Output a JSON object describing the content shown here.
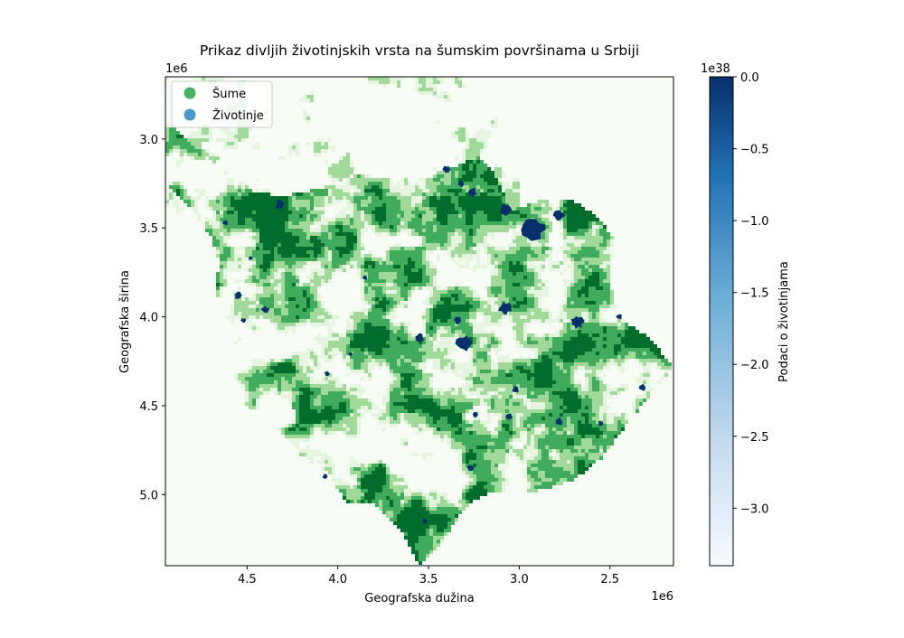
{
  "chart_data": {
    "type": "heatmap",
    "title": "Prikaz divljih životinjskih vrsta na šumskim površinama u Srbiji",
    "xlabel": "Geografska dužina",
    "ylabel": "Geografska širina",
    "x_multiplier": "1e6",
    "y_multiplier": "1e6",
    "xlim": [
      4.95,
      2.15
    ],
    "ylim": [
      5.4,
      2.65
    ],
    "x_inverted": true,
    "y_inverted": true,
    "xticks": [
      {
        "value": 4.5,
        "label": "4.5"
      },
      {
        "value": 4.0,
        "label": "4.0"
      },
      {
        "value": 3.5,
        "label": "3.5"
      },
      {
        "value": 3.0,
        "label": "3.0"
      },
      {
        "value": 2.5,
        "label": "2.5"
      }
    ],
    "yticks": [
      {
        "value": 3.0,
        "label": "3.0"
      },
      {
        "value": 3.5,
        "label": "3.5"
      },
      {
        "value": 4.0,
        "label": "4.0"
      },
      {
        "value": 4.5,
        "label": "4.5"
      },
      {
        "value": 5.0,
        "label": "5.0"
      }
    ],
    "legend": {
      "placement": "top-left",
      "entries": [
        {
          "label": "Šume",
          "color": "#4daf62"
        },
        {
          "label": "Životinje",
          "color": "#4a98c9"
        }
      ]
    },
    "layers": [
      {
        "name": "Šume",
        "colormap": "Greens"
      },
      {
        "name": "Životinje",
        "colormap": "Blues"
      }
    ],
    "colorbar": {
      "label": "Podaci o životinjama",
      "multiplier": "1e38",
      "range": [
        -3.4,
        0.0
      ],
      "ticks": [
        {
          "value": 0.0,
          "label": "0.0"
        },
        {
          "value": -0.5,
          "label": "−0.5"
        },
        {
          "value": -1.0,
          "label": "−1.0"
        },
        {
          "value": -1.5,
          "label": "−1.5"
        },
        {
          "value": -2.0,
          "label": "−2.0"
        },
        {
          "value": -2.5,
          "label": "−2.5"
        },
        {
          "value": -3.0,
          "label": "−3.0"
        }
      ],
      "colors": [
        "#f7fbff",
        "#c6dbef",
        "#6baed6",
        "#2171b5",
        "#08306b"
      ]
    },
    "background_color": "#f7fcf5",
    "forest_colors": [
      "#e5f5e0",
      "#a1d99b",
      "#41ab5d",
      "#006d2c"
    ],
    "animal_color": "#08306b",
    "animal_patches": [
      {
        "x": 2.92,
        "y": 3.51,
        "r": 0.06
      },
      {
        "x": 3.08,
        "y": 3.4,
        "r": 0.035
      },
      {
        "x": 2.78,
        "y": 3.43,
        "r": 0.03
      },
      {
        "x": 3.26,
        "y": 3.3,
        "r": 0.025
      },
      {
        "x": 3.4,
        "y": 3.17,
        "r": 0.02
      },
      {
        "x": 3.32,
        "y": 3.25,
        "r": 0.018
      },
      {
        "x": 3.08,
        "y": 3.95,
        "r": 0.035
      },
      {
        "x": 3.3,
        "y": 4.15,
        "r": 0.045
      },
      {
        "x": 3.55,
        "y": 4.12,
        "r": 0.025
      },
      {
        "x": 3.34,
        "y": 4.02,
        "r": 0.02
      },
      {
        "x": 2.68,
        "y": 4.03,
        "r": 0.035
      },
      {
        "x": 4.55,
        "y": 3.88,
        "r": 0.02
      },
      {
        "x": 4.52,
        "y": 4.02,
        "r": 0.015
      },
      {
        "x": 4.4,
        "y": 3.96,
        "r": 0.02
      },
      {
        "x": 4.32,
        "y": 3.37,
        "r": 0.025
      },
      {
        "x": 4.62,
        "y": 3.47,
        "r": 0.015
      },
      {
        "x": 2.78,
        "y": 4.59,
        "r": 0.02
      },
      {
        "x": 3.06,
        "y": 4.56,
        "r": 0.02
      },
      {
        "x": 3.27,
        "y": 4.85,
        "r": 0.018
      },
      {
        "x": 3.52,
        "y": 5.15,
        "r": 0.015
      },
      {
        "x": 4.07,
        "y": 4.9,
        "r": 0.015
      },
      {
        "x": 2.32,
        "y": 4.4,
        "r": 0.02
      },
      {
        "x": 2.55,
        "y": 4.6,
        "r": 0.015
      },
      {
        "x": 4.06,
        "y": 4.32,
        "r": 0.015
      },
      {
        "x": 3.93,
        "y": 4.21,
        "r": 0.012
      },
      {
        "x": 4.48,
        "y": 3.67,
        "r": 0.012
      },
      {
        "x": 3.85,
        "y": 3.78,
        "r": 0.012
      },
      {
        "x": 3.24,
        "y": 4.55,
        "r": 0.015
      },
      {
        "x": 2.45,
        "y": 4.0,
        "r": 0.015
      },
      {
        "x": 3.02,
        "y": 4.41,
        "r": 0.018
      }
    ]
  }
}
